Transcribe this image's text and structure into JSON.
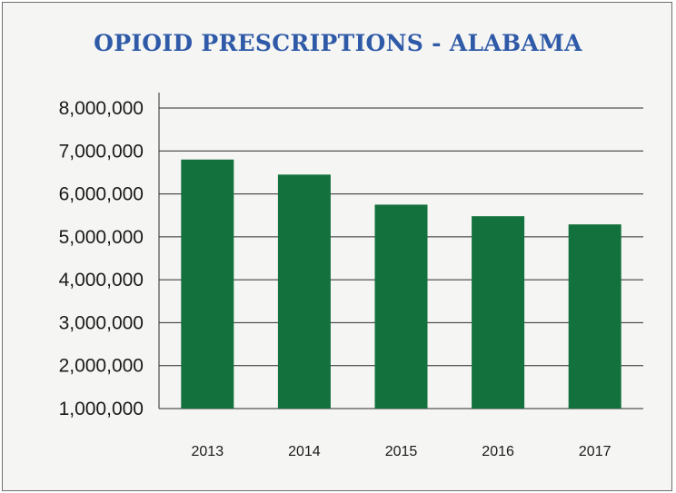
{
  "chart_data": {
    "type": "bar",
    "title": "OPIOID PRESCRIPTIONS - ALABAMA",
    "xlabel": "",
    "ylabel": "",
    "categories": [
      "2013",
      "2014",
      "2015",
      "2016",
      "2017"
    ],
    "values": [
      6800000,
      6450000,
      5750000,
      5480000,
      5290000
    ],
    "ylim": [
      1000000,
      8000000
    ],
    "yticks": [
      "1,000,000",
      "2,000,000",
      "3,000,000",
      "4,000,000",
      "5,000,000",
      "6,000,000",
      "7,000,000",
      "8,000,000"
    ],
    "ytick_values": [
      1000000,
      2000000,
      3000000,
      4000000,
      5000000,
      6000000,
      7000000,
      8000000
    ],
    "grid": true,
    "legend": "none",
    "colors": {
      "bar": "#13713d",
      "title": "#2f5aa8",
      "gridline": "#2b2b2b",
      "background": "#f5f5f3"
    }
  }
}
